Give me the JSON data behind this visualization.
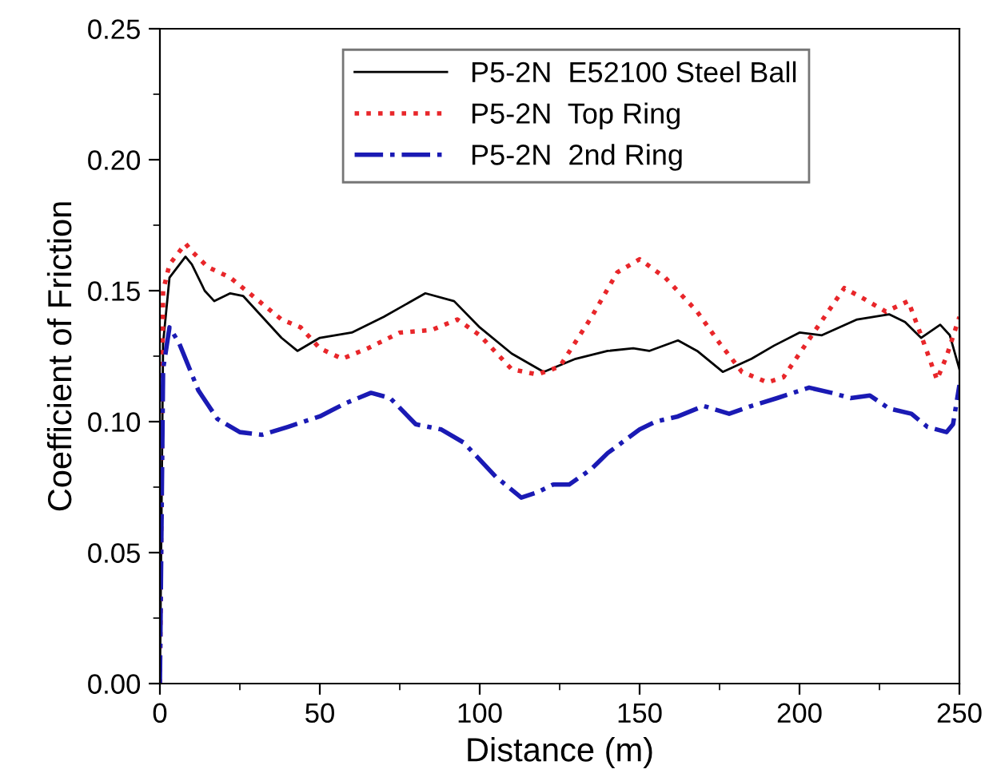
{
  "chart_data": {
    "type": "line",
    "xlabel": "Distance (m)",
    "ylabel": "Coefficient of Friction",
    "xlim": [
      0,
      250
    ],
    "xticks": [
      0,
      50,
      100,
      150,
      200,
      250
    ],
    "ylim": [
      0,
      0.25
    ],
    "yticks": [
      {
        "value": 0,
        "label": "0.00"
      },
      {
        "value": 0.05,
        "label": "0.05"
      },
      {
        "value": 0.1,
        "label": "0.10"
      },
      {
        "value": 0.15,
        "label": "0.15"
      },
      {
        "value": 0.2,
        "label": "0.20"
      },
      {
        "value": 0.25,
        "label": "0.25"
      }
    ],
    "grid": false,
    "legend": "top right",
    "marker": "none",
    "series": [
      {
        "name": "P5-2N  E52100 Steel Ball",
        "color": "#000000",
        "line_style": "solid",
        "x": [
          0,
          1,
          3,
          8,
          10,
          14,
          17,
          22,
          26,
          32,
          38,
          43,
          50,
          60,
          70,
          83,
          92,
          100,
          110,
          120,
          130,
          140,
          148,
          153,
          162,
          168,
          176,
          185,
          192,
          200,
          207,
          218,
          228,
          233,
          238,
          244,
          247,
          250
        ],
        "values": [
          0,
          0.13,
          0.155,
          0.163,
          0.16,
          0.15,
          0.146,
          0.149,
          0.148,
          0.14,
          0.132,
          0.127,
          0.132,
          0.134,
          0.14,
          0.149,
          0.146,
          0.136,
          0.126,
          0.119,
          0.124,
          0.127,
          0.128,
          0.127,
          0.131,
          0.127,
          0.119,
          0.124,
          0.129,
          0.134,
          0.133,
          0.139,
          0.141,
          0.138,
          0.132,
          0.137,
          0.133,
          0.12
        ]
      },
      {
        "name": "P5-2N  Top Ring",
        "color": "#e8262a",
        "line_style": "dotted",
        "x": [
          0,
          1,
          3,
          8,
          10,
          15,
          22,
          30,
          38,
          44,
          50,
          57,
          65,
          75,
          85,
          93,
          100,
          110,
          118,
          125,
          135,
          143,
          150,
          158,
          168,
          175,
          182,
          190,
          195,
          205,
          214,
          220,
          227,
          234,
          238,
          243,
          246,
          250
        ],
        "values": [
          0,
          0.15,
          0.16,
          0.168,
          0.165,
          0.159,
          0.155,
          0.147,
          0.139,
          0.136,
          0.128,
          0.124,
          0.128,
          0.134,
          0.135,
          0.139,
          0.133,
          0.12,
          0.118,
          0.121,
          0.14,
          0.157,
          0.162,
          0.155,
          0.142,
          0.13,
          0.119,
          0.115,
          0.117,
          0.135,
          0.151,
          0.147,
          0.142,
          0.146,
          0.133,
          0.116,
          0.125,
          0.14
        ]
      },
      {
        "name": "P5-2N  2nd Ring",
        "color": "#1a1ab4",
        "line_style": "dashdot",
        "x": [
          0,
          1,
          3,
          6,
          12,
          18,
          25,
          32,
          40,
          50,
          58,
          66,
          72,
          80,
          88,
          95,
          105,
          113,
          118,
          123,
          128,
          135,
          140,
          150,
          155,
          162,
          170,
          178,
          185,
          193,
          203,
          210,
          216,
          222,
          228,
          235,
          240,
          246,
          248,
          250
        ],
        "values": [
          0,
          0.12,
          0.136,
          0.13,
          0.112,
          0.101,
          0.096,
          0.095,
          0.098,
          0.102,
          0.107,
          0.111,
          0.109,
          0.099,
          0.097,
          0.092,
          0.079,
          0.071,
          0.073,
          0.076,
          0.076,
          0.082,
          0.088,
          0.097,
          0.1,
          0.102,
          0.106,
          0.103,
          0.106,
          0.109,
          0.113,
          0.111,
          0.109,
          0.11,
          0.105,
          0.103,
          0.098,
          0.096,
          0.099,
          0.114
        ]
      }
    ]
  }
}
